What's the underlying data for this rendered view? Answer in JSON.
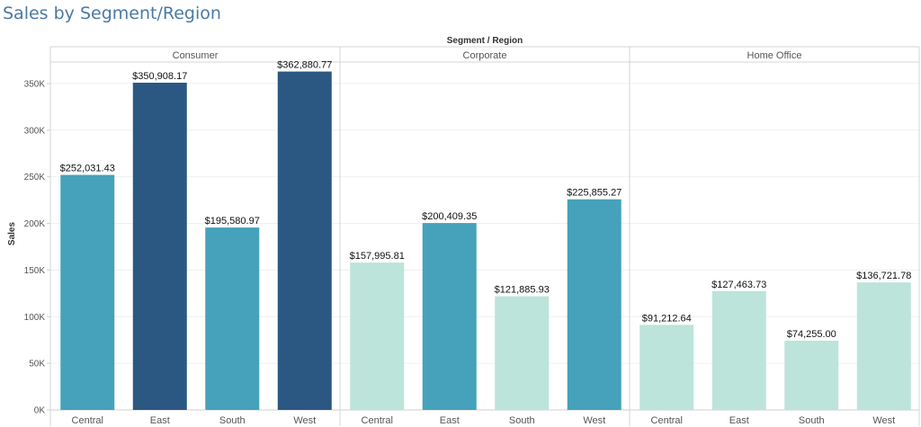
{
  "page": {
    "title": "Sales by Segment/Region"
  },
  "chart_data": {
    "type": "bar",
    "title": "Sales by Segment/Region",
    "header_title": "Segment / Region",
    "ylabel": "Sales",
    "ylim": [
      0,
      375000
    ],
    "yticks": [
      0,
      50000,
      100000,
      150000,
      200000,
      250000,
      300000,
      350000
    ],
    "ytick_labels": [
      "0K",
      "50K",
      "100K",
      "150K",
      "200K",
      "250K",
      "300K",
      "350K"
    ],
    "colors": {
      "low": "#bce4da",
      "mid": "#45a2ba",
      "high": "#2b5882"
    },
    "grid": true,
    "segments": [
      {
        "name": "Consumer",
        "categories": [
          "Central",
          "East",
          "South",
          "West"
        ],
        "values": [
          252031.43,
          350908.17,
          195580.97,
          362880.77
        ],
        "labels": [
          "$252,031.43",
          "$350,908.17",
          "$195,580.97",
          "$362,880.77"
        ],
        "color_levels": [
          "mid",
          "high",
          "mid",
          "high"
        ]
      },
      {
        "name": "Corporate",
        "categories": [
          "Central",
          "East",
          "South",
          "West"
        ],
        "values": [
          157995.81,
          200409.35,
          121885.93,
          225855.27
        ],
        "labels": [
          "$157,995.81",
          "$200,409.35",
          "$121,885.93",
          "$225,855.27"
        ],
        "color_levels": [
          "low",
          "mid",
          "low",
          "mid"
        ]
      },
      {
        "name": "Home Office",
        "categories": [
          "Central",
          "East",
          "South",
          "West"
        ],
        "values": [
          91212.64,
          127463.73,
          74255.0,
          136721.78
        ],
        "labels": [
          "$91,212.64",
          "$127,463.73",
          "$74,255.00",
          "$136,721.78"
        ],
        "color_levels": [
          "low",
          "low",
          "low",
          "low"
        ]
      }
    ]
  }
}
